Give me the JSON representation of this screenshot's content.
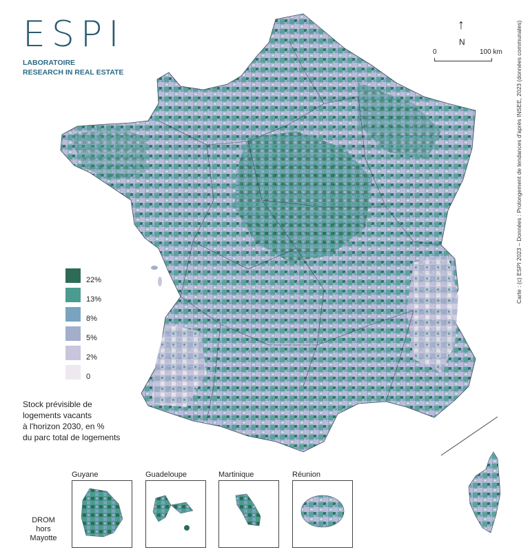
{
  "logo": {
    "word": "ESPI",
    "line1": "LABORATOIRE",
    "line2": "RESEARCH IN REAL ESTATE"
  },
  "scale": {
    "north_label": "N",
    "start_label": "0",
    "end_label": "100 km"
  },
  "credit": "Carte : (c) ESPI 2023 – Données : Prolongement de tendances d'après INSEE, 2023 (données communales)",
  "legend": {
    "title": "Stock prévisible de\nlogements vacants\nà l'horizon 2030, en %\ndu parc total de logements",
    "classes": [
      {
        "label": "22%",
        "color": "#2e6b57"
      },
      {
        "label": "13%",
        "color": "#4b9b91"
      },
      {
        "label": "8%",
        "color": "#7aa3c0"
      },
      {
        "label": "5%",
        "color": "#a3aecb"
      },
      {
        "label": "2%",
        "color": "#c9c5dd"
      },
      {
        "label": "0",
        "color": "#efe8ef"
      }
    ]
  },
  "drom": {
    "title": "DROM\nhors\nMayotte",
    "insets": [
      {
        "label": "Guyane"
      },
      {
        "label": "Guadeloupe"
      },
      {
        "label": "Martinique"
      },
      {
        "label": "Réunion"
      }
    ]
  }
}
